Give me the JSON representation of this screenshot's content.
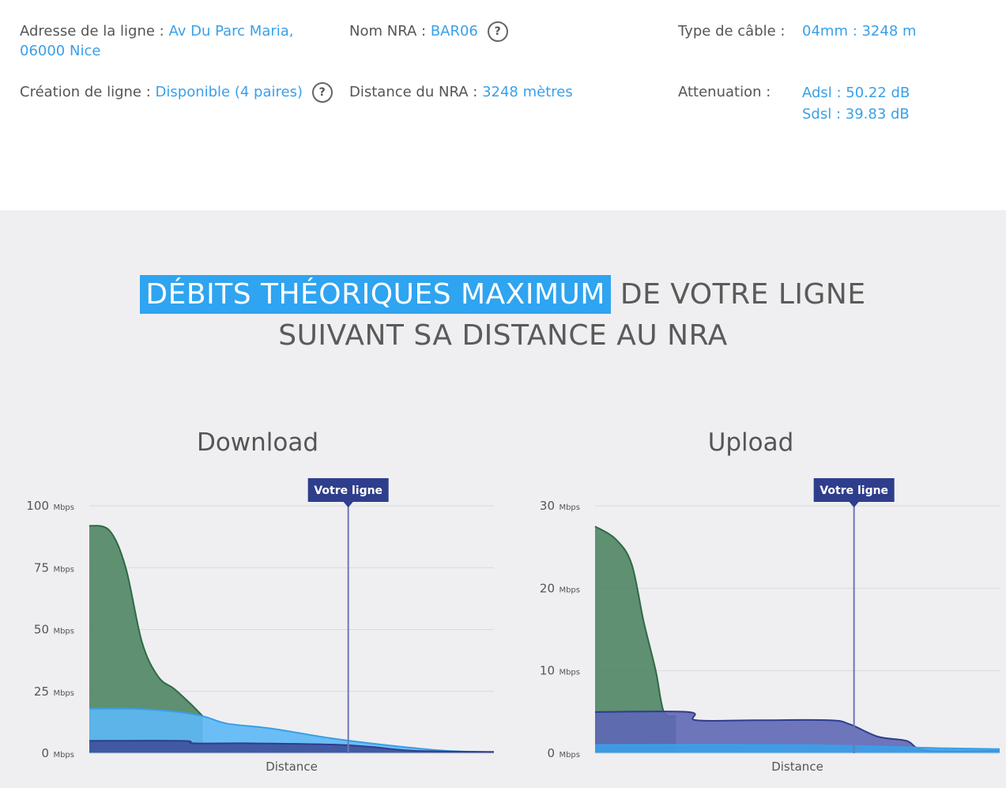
{
  "info": {
    "adresse_label": "Adresse de la ligne :",
    "adresse_value_1": "Av Du Parc Maria,",
    "adresse_value_2": "06000 Nice",
    "nra_label": "Nom NRA :",
    "nra_value": "BAR06",
    "cable_label": "Type de câble :",
    "cable_value": "04mm : 3248 m",
    "creation_label": "Création de ligne :",
    "creation_value": "Disponible (4 paires)",
    "distance_label": "Distance du NRA :",
    "distance_value": "3248 mètres",
    "attenuation_label": "Attenuation :",
    "attenuation_adsl": "Adsl : 50.22 dB",
    "attenuation_sdsl": "Sdsl : 39.83 dB",
    "help_symbol": "?"
  },
  "headline": {
    "highlight": "DÉBITS THÉORIQUES MAXIMUM",
    "rest": "DE VOTRE LIGNE",
    "line2": "SUIVANT SA DISTANCE AU NRA"
  },
  "colors": {
    "accent": "#3aa0e8",
    "highlight_bg": "#2fa4f0",
    "marker": "#2e3e8c",
    "green": "#4e8563",
    "light_blue": "#5cb8f5",
    "dark_blue": "#3e4f9a"
  },
  "chart_data": [
    {
      "type": "area",
      "title": "Download",
      "xlabel": "Distance",
      "unit": "Mbps",
      "yticks": [
        0,
        25,
        50,
        75,
        100
      ],
      "ylim": [
        0,
        100
      ],
      "marker_label": "Votre ligne",
      "marker_x": 0.64,
      "series": [
        {
          "color": "#4e8563",
          "stroke": "#2f6a46",
          "x": [
            0,
            0.05,
            0.09,
            0.13,
            0.17,
            0.21,
            0.25,
            0.28
          ],
          "values": [
            92,
            90,
            75,
            45,
            31,
            26,
            20,
            15
          ]
        },
        {
          "color": "#5cb8f5",
          "stroke": "#3a9ee6",
          "x": [
            0,
            0.1,
            0.2,
            0.28,
            0.34,
            0.45,
            0.6,
            0.75,
            0.88,
            1
          ],
          "values": [
            18,
            18,
            17,
            15,
            12,
            10,
            6,
            3,
            1,
            0.5
          ]
        },
        {
          "color": "#3e4f9a",
          "stroke": "#2e3e8c",
          "x": [
            0,
            0.23,
            0.26,
            0.4,
            0.6,
            0.7,
            0.8,
            1
          ],
          "values": [
            5,
            5,
            4,
            4,
            3.5,
            2.5,
            1,
            0.5
          ]
        }
      ]
    },
    {
      "type": "area",
      "title": "Upload",
      "xlabel": "Distance",
      "unit": "Mbps",
      "yticks": [
        0,
        10,
        20,
        30
      ],
      "ylim": [
        0,
        30
      ],
      "marker_label": "Votre ligne",
      "marker_x": 0.64,
      "series": [
        {
          "color": "#4e8563",
          "stroke": "#2f6a46",
          "x": [
            0,
            0.05,
            0.09,
            0.12,
            0.15,
            0.17,
            0.2
          ],
          "values": [
            27.5,
            26,
            23,
            16,
            10,
            5,
            4.5
          ]
        },
        {
          "color": "#5e67b5",
          "stroke": "#2e3e8c",
          "x": [
            0,
            0.23,
            0.25,
            0.4,
            0.58,
            0.63,
            0.7,
            0.77,
            0.82,
            1
          ],
          "values": [
            5,
            5,
            4,
            4,
            4,
            3.5,
            2,
            1.5,
            0.3,
            0.3
          ]
        },
        {
          "color": "#3aa0e8",
          "stroke": "#3aa0e8",
          "x": [
            0,
            0.5,
            0.87,
            1
          ],
          "values": [
            1,
            1,
            0.6,
            0.5
          ]
        }
      ]
    }
  ]
}
